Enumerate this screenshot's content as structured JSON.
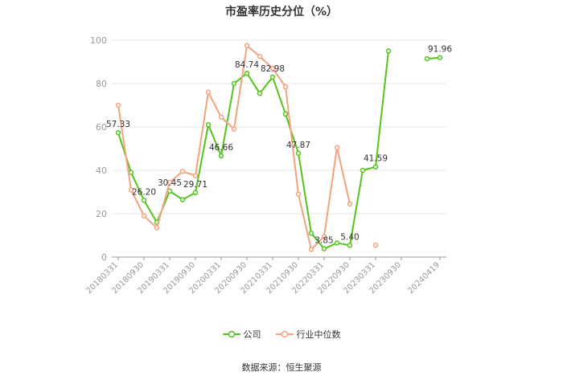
{
  "chart_data": {
    "type": "line",
    "title": "市盈率历史分位（%）",
    "x": [
      "20180331",
      "20180630",
      "20180930",
      "20181231",
      "20190331",
      "20190630",
      "20190930",
      "20191231",
      "20200331",
      "20200630",
      "20200930",
      "20201231",
      "20210331",
      "20210630",
      "20210930",
      "20211231",
      "20220331",
      "20220630",
      "20220930",
      "20221231",
      "20230331",
      "20230630",
      "20230930",
      "20231231",
      "20240331",
      "20240419"
    ],
    "xticks": [
      "20180331",
      "20180930",
      "20190331",
      "20190930",
      "20200331",
      "20200930",
      "20210331",
      "20210930",
      "20220331",
      "20220930",
      "20230331",
      "20230930",
      "20240419"
    ],
    "ylim": [
      0,
      100
    ],
    "yticks": [
      0,
      20,
      40,
      60,
      80,
      100
    ],
    "grid": true,
    "legend_position": "bottom",
    "series": [
      {
        "name": "公司",
        "color": "#52c41a",
        "values": [
          57.33,
          39,
          26.2,
          16,
          30.45,
          26.5,
          29.71,
          61,
          46.66,
          80,
          84.74,
          75.5,
          82.98,
          66,
          47.87,
          11,
          3.85,
          6.5,
          5.4,
          40,
          41.59,
          95,
          null,
          null,
          91.45,
          91.96
        ],
        "labels": {
          "0": "57.33",
          "2": "26.20",
          "4": "30.45",
          "6": "29.71",
          "8": "46.66",
          "10": "84.74",
          "12": "82.98",
          "14": "47.87",
          "16": "3.85",
          "18": "5.40",
          "20": "41.59",
          "25": "91.96"
        }
      },
      {
        "name": "行业中位数",
        "color": "#f4a27e",
        "values": [
          70,
          31,
          19,
          13.5,
          34.5,
          39.5,
          37.5,
          76,
          64.5,
          59,
          97.5,
          92.5,
          87,
          78.5,
          29,
          3.5,
          9.5,
          50.5,
          24.5,
          null,
          5.5,
          null,
          null,
          null,
          null,
          null
        ]
      }
    ]
  },
  "legend": {
    "company": "公司",
    "industry": "行业中位数"
  },
  "source": "数据来源：恒生聚源"
}
